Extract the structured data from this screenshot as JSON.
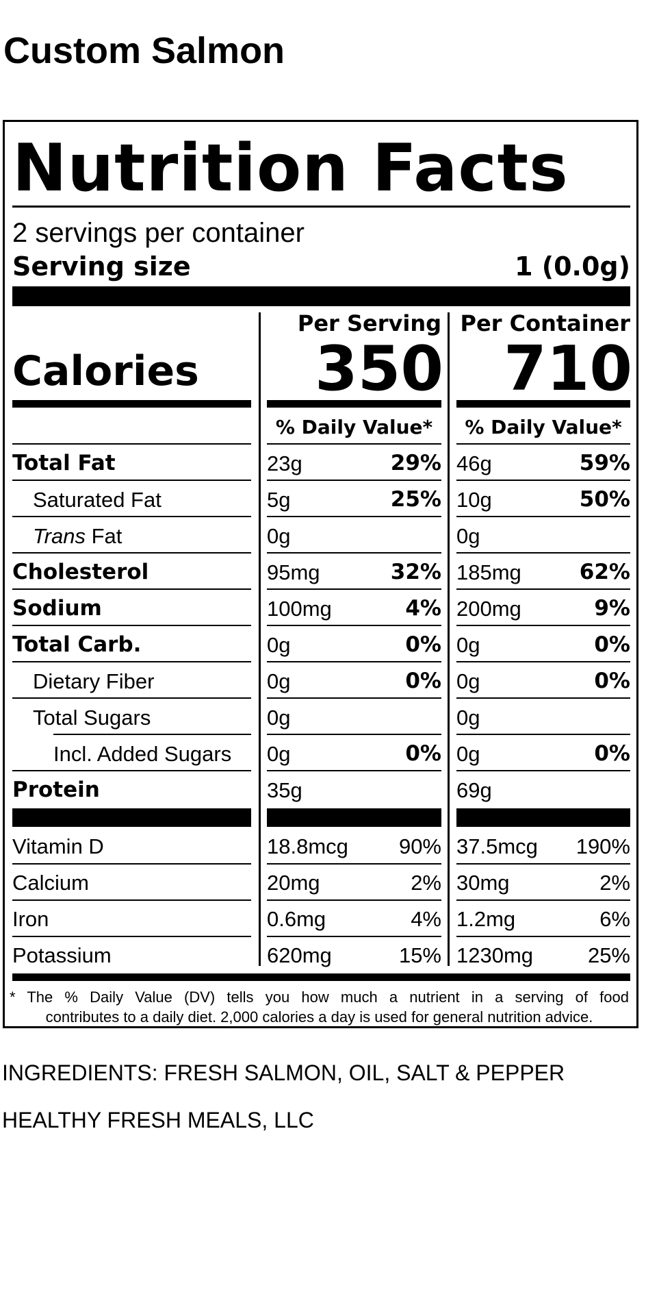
{
  "product_title": "Custom Salmon",
  "label": {
    "heading": "Nutrition Facts",
    "servings_per_container": "2 servings per container",
    "serving_size_label": "Serving size",
    "serving_size_value": "1 (0.0g)",
    "calories_label": "Calories",
    "per_serving_header": "Per Serving",
    "per_container_header": "Per Container",
    "calories_per_serving": "350",
    "calories_per_container": "710",
    "daily_value_header": "% Daily Value*",
    "nutrients": [
      {
        "name": "Total Fat",
        "serving_amount": "23g",
        "serving_dv": "29%",
        "container_amount": "46g",
        "container_dv": "59%"
      },
      {
        "name": "Saturated Fat",
        "serving_amount": "5g",
        "serving_dv": "25%",
        "container_amount": "10g",
        "container_dv": "50%"
      },
      {
        "name_italic": "Trans",
        "name_rest": " Fat",
        "serving_amount": "0g",
        "serving_dv": "",
        "container_amount": "0g",
        "container_dv": ""
      },
      {
        "name": "Cholesterol",
        "serving_amount": "95mg",
        "serving_dv": "32%",
        "container_amount": "185mg",
        "container_dv": "62%"
      },
      {
        "name": "Sodium",
        "serving_amount": "100mg",
        "serving_dv": "4%",
        "container_amount": "200mg",
        "container_dv": "9%"
      },
      {
        "name": "Total Carb.",
        "serving_amount": "0g",
        "serving_dv": "0%",
        "container_amount": "0g",
        "container_dv": "0%"
      },
      {
        "name": "Dietary Fiber",
        "serving_amount": "0g",
        "serving_dv": "0%",
        "container_amount": "0g",
        "container_dv": "0%"
      },
      {
        "name": "Total Sugars",
        "serving_amount": "0g",
        "serving_dv": "",
        "container_amount": "0g",
        "container_dv": ""
      },
      {
        "name": "Incl. Added Sugars",
        "serving_amount": "0g",
        "serving_dv": "0%",
        "container_amount": "0g",
        "container_dv": "0%"
      },
      {
        "name": "Protein",
        "serving_amount": "35g",
        "serving_dv": "",
        "container_amount": "69g",
        "container_dv": ""
      }
    ],
    "vitamins": [
      {
        "name": "Vitamin D",
        "serving_amount": "18.8mcg",
        "serving_dv": "90%",
        "container_amount": "37.5mcg",
        "container_dv": "190%"
      },
      {
        "name": "Calcium",
        "serving_amount": "20mg",
        "serving_dv": "2%",
        "container_amount": "30mg",
        "container_dv": "2%"
      },
      {
        "name": "Iron",
        "serving_amount": "0.6mg",
        "serving_dv": "4%",
        "container_amount": "1.2mg",
        "container_dv": "6%"
      },
      {
        "name": "Potassium",
        "serving_amount": "620mg",
        "serving_dv": "15%",
        "container_amount": "1230mg",
        "container_dv": "25%"
      }
    ],
    "footnote_marker": "*",
    "footnote_line1": "The % Daily Value (DV) tells you how much a nutrient in a serving of food",
    "footnote_line2": "contributes to a daily diet. 2,000 calories a day is used for general nutrition advice."
  },
  "ingredients": "INGREDIENTS: FRESH SALMON, OIL, SALT & PEPPER",
  "manufacturer": "HEALTHY FRESH MEALS, LLC"
}
